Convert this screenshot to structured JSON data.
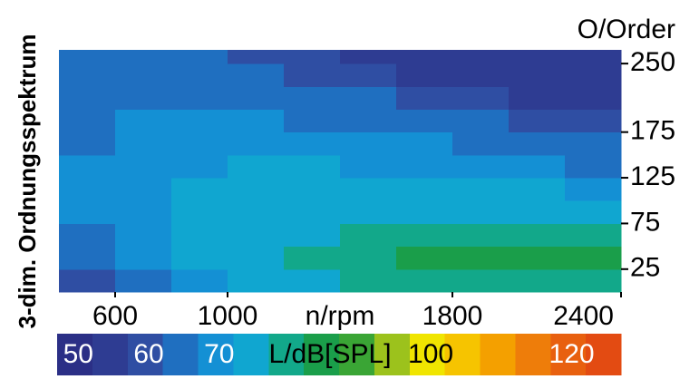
{
  "chart_data": {
    "type": "heatmap",
    "title": "3-dim. Ordnungsspektrum",
    "x_label": "n/rpm",
    "y_label": "O/Order",
    "xbins": [
      400,
      600,
      800,
      1000,
      1200,
      1400,
      1600,
      1800,
      2000,
      2200,
      2400
    ],
    "ybins": [
      0,
      25,
      50,
      75,
      100,
      125,
      150,
      175,
      200,
      225,
      250,
      265
    ],
    "values": [
      [
        60,
        66,
        70,
        74,
        76,
        78,
        80,
        80,
        80,
        80
      ],
      [
        64,
        70,
        74,
        76,
        78,
        80,
        82,
        82,
        82,
        82
      ],
      [
        66,
        70,
        72,
        74,
        76,
        78,
        80,
        80,
        80,
        78
      ],
      [
        68,
        70,
        72,
        74,
        74,
        76,
        76,
        76,
        74,
        74
      ],
      [
        68,
        70,
        72,
        72,
        72,
        72,
        72,
        72,
        72,
        70
      ],
      [
        68,
        70,
        70,
        72,
        72,
        70,
        70,
        70,
        68,
        66
      ],
      [
        66,
        68,
        70,
        70,
        70,
        68,
        68,
        66,
        64,
        62
      ],
      [
        66,
        68,
        68,
        68,
        66,
        66,
        64,
        62,
        60,
        58
      ],
      [
        66,
        66,
        66,
        64,
        64,
        62,
        60,
        58,
        56,
        56
      ],
      [
        66,
        66,
        64,
        62,
        60,
        58,
        56,
        55,
        55,
        55
      ],
      [
        64,
        64,
        62,
        60,
        58,
        56,
        55,
        55,
        55,
        56
      ]
    ],
    "xlim": [
      400,
      2400
    ],
    "ylim": [
      0,
      265
    ],
    "xticks": [
      600,
      1000,
      1800,
      2400
    ],
    "yticks": [
      25,
      75,
      125,
      175,
      250
    ],
    "colorbar": {
      "label": "L/dB[SPL]",
      "lim": [
        47,
        127
      ],
      "ticks": [
        50,
        60,
        70,
        100,
        120
      ],
      "colors": [
        "#2b2f86",
        "#2e3c92",
        "#2f4ea3",
        "#1f6fc0",
        "#1490d4",
        "#10a6d0",
        "#12a88a",
        "#1a9e4a",
        "#3aa535",
        "#9cc21c",
        "#f0e500",
        "#f6c400",
        "#f4a000",
        "#ee7d0a",
        "#e8600f",
        "#e34b12"
      ]
    }
  }
}
